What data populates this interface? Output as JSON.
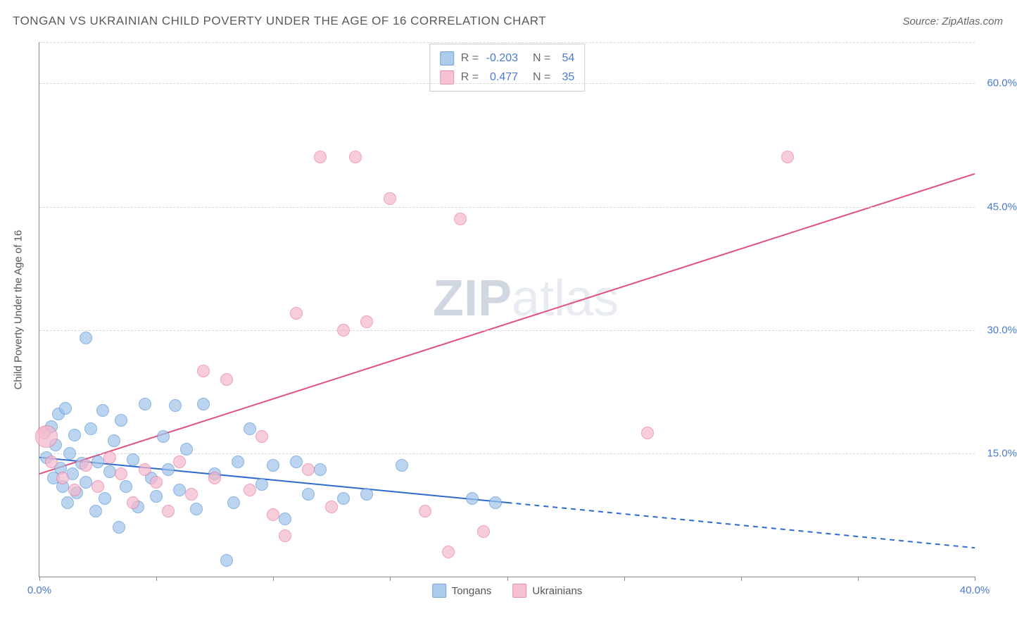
{
  "title": "TONGAN VS UKRAINIAN CHILD POVERTY UNDER THE AGE OF 16 CORRELATION CHART",
  "source_label": "Source: ZipAtlas.com",
  "y_axis_label": "Child Poverty Under the Age of 16",
  "watermark": {
    "part1": "ZIP",
    "part2": "atlas"
  },
  "chart": {
    "type": "scatter-with-trend",
    "background_color": "#ffffff",
    "grid_color": "#d8d8d8",
    "axis_color": "#888888",
    "tick_label_color": "#4a7bd0",
    "tick_fontsize": 15,
    "xlim": [
      0,
      40
    ],
    "ylim": [
      0,
      65
    ],
    "x_ticks": [
      0,
      5,
      10,
      15,
      20,
      25,
      30,
      35,
      40
    ],
    "x_tick_labels": {
      "0": "0.0%",
      "40": "40.0%"
    },
    "y_ticks": [
      15,
      30,
      45,
      60
    ],
    "y_tick_labels": {
      "15": "15.0%",
      "30": "30.0%",
      "45": "45.0%",
      "60": "60.0%"
    },
    "marker_radius": 9,
    "marker_stroke_width": 1.5,
    "marker_fill_opacity": 0.35,
    "series": [
      {
        "name": "Tongans",
        "legend_label": "Tongans",
        "stroke_color": "#5a95d6",
        "fill_color": "#9fc3eb",
        "trend": {
          "x1": 0,
          "y1": 14.5,
          "x2": 20,
          "y2": 9.0,
          "solid_until_x": 20,
          "extend_to_x": 40,
          "line_color": "#2e6bd0",
          "line_width": 2
        },
        "R": "-0.203",
        "N": "54",
        "points": [
          [
            0.3,
            14.5
          ],
          [
            0.5,
            18.2
          ],
          [
            0.6,
            12.0
          ],
          [
            0.7,
            16.0
          ],
          [
            0.8,
            19.8
          ],
          [
            0.9,
            13.2
          ],
          [
            1.0,
            11.0
          ],
          [
            1.1,
            20.5
          ],
          [
            1.2,
            9.0
          ],
          [
            1.3,
            15.0
          ],
          [
            1.4,
            12.5
          ],
          [
            1.5,
            17.2
          ],
          [
            1.6,
            10.2
          ],
          [
            1.8,
            13.8
          ],
          [
            2.0,
            29.0
          ],
          [
            2.0,
            11.5
          ],
          [
            2.2,
            18.0
          ],
          [
            2.4,
            8.0
          ],
          [
            2.5,
            14.0
          ],
          [
            2.7,
            20.2
          ],
          [
            2.8,
            9.5
          ],
          [
            3.0,
            12.8
          ],
          [
            3.2,
            16.5
          ],
          [
            3.4,
            6.0
          ],
          [
            3.5,
            19.0
          ],
          [
            3.7,
            11.0
          ],
          [
            4.0,
            14.2
          ],
          [
            4.2,
            8.5
          ],
          [
            4.5,
            21.0
          ],
          [
            4.8,
            12.0
          ],
          [
            5.0,
            9.8
          ],
          [
            5.3,
            17.0
          ],
          [
            5.5,
            13.0
          ],
          [
            5.8,
            20.8
          ],
          [
            6.0,
            10.5
          ],
          [
            6.3,
            15.5
          ],
          [
            6.7,
            8.2
          ],
          [
            7.0,
            21.0
          ],
          [
            7.5,
            12.5
          ],
          [
            8.0,
            2.0
          ],
          [
            8.3,
            9.0
          ],
          [
            8.5,
            14.0
          ],
          [
            9.0,
            18.0
          ],
          [
            9.5,
            11.2
          ],
          [
            10.0,
            13.5
          ],
          [
            10.5,
            7.0
          ],
          [
            11.0,
            14.0
          ],
          [
            11.5,
            10.0
          ],
          [
            12.0,
            13.0
          ],
          [
            13.0,
            9.5
          ],
          [
            14.0,
            10.0
          ],
          [
            15.5,
            13.5
          ],
          [
            18.5,
            9.5
          ],
          [
            19.5,
            9.0
          ]
        ]
      },
      {
        "name": "Ukrainians",
        "legend_label": "Ukrainians",
        "stroke_color": "#e57ba0",
        "fill_color": "#f5b8cc",
        "trend": {
          "x1": 0,
          "y1": 12.5,
          "x2": 40,
          "y2": 49.0,
          "solid_until_x": 40,
          "extend_to_x": 40,
          "line_color": "#e0517f",
          "line_width": 2
        },
        "R": "0.477",
        "N": "35",
        "points": [
          [
            0.2,
            17.5
          ],
          [
            0.5,
            14.0
          ],
          [
            1.0,
            12.0
          ],
          [
            1.5,
            10.5
          ],
          [
            2.0,
            13.5
          ],
          [
            2.5,
            11.0
          ],
          [
            3.0,
            14.5
          ],
          [
            3.5,
            12.5
          ],
          [
            4.0,
            9.0
          ],
          [
            4.5,
            13.0
          ],
          [
            5.0,
            11.5
          ],
          [
            5.5,
            8.0
          ],
          [
            6.0,
            14.0
          ],
          [
            6.5,
            10.0
          ],
          [
            7.0,
            25.0
          ],
          [
            7.5,
            12.0
          ],
          [
            8.0,
            24.0
          ],
          [
            9.0,
            10.5
          ],
          [
            9.5,
            17.0
          ],
          [
            10.0,
            7.5
          ],
          [
            10.5,
            5.0
          ],
          [
            11.0,
            32.0
          ],
          [
            11.5,
            13.0
          ],
          [
            12.0,
            51.0
          ],
          [
            12.5,
            8.5
          ],
          [
            13.0,
            30.0
          ],
          [
            13.5,
            51.0
          ],
          [
            14.0,
            31.0
          ],
          [
            15.0,
            46.0
          ],
          [
            16.5,
            8.0
          ],
          [
            17.5,
            3.0
          ],
          [
            18.0,
            43.5
          ],
          [
            19.0,
            5.5
          ],
          [
            26.0,
            17.5
          ],
          [
            32.0,
            51.0
          ]
        ],
        "large_points": [
          [
            0.3,
            17.0,
            16
          ]
        ]
      }
    ],
    "legend_box": {
      "border_color": "#cccccc",
      "bg_color": "#ffffff",
      "fontsize": 16,
      "r_label": "R =",
      "n_label": "N ="
    }
  }
}
